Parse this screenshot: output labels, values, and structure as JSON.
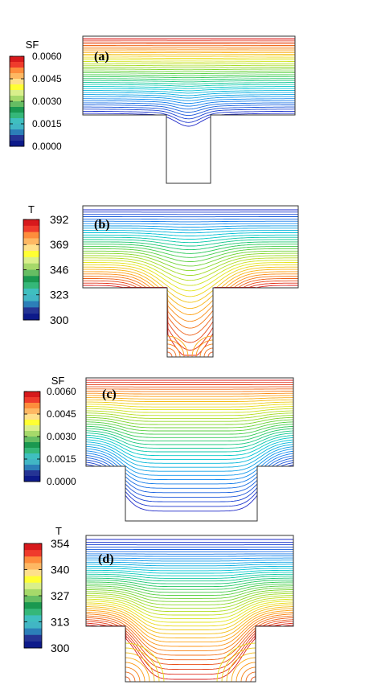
{
  "panels": [
    {
      "id": "a",
      "label": "(a)",
      "colorbar": {
        "title": "SF",
        "ticks": [
          "0.0060",
          "0.0045",
          "0.0030",
          "0.0015",
          "0.0000"
        ],
        "colors": [
          "#d7191c",
          "#ef3b2c",
          "#fd8d3c",
          "#fdb863",
          "#fee08b",
          "#ffff33",
          "#d9ef8b",
          "#a6d96a",
          "#66bd63",
          "#1a9850",
          "#35b779",
          "#3fbfbf",
          "#41b6c4",
          "#2c7fb8",
          "#253494",
          "#0d1a8a"
        ]
      }
    },
    {
      "id": "b",
      "label": "(b)",
      "colorbar": {
        "title": "T",
        "ticks": [
          "392",
          "369",
          "346",
          "323",
          "300"
        ],
        "colors": [
          "#d7191c",
          "#ef3b2c",
          "#fd8d3c",
          "#fdb863",
          "#fee08b",
          "#ffff33",
          "#d9ef8b",
          "#a6d96a",
          "#66bd63",
          "#1a9850",
          "#35b779",
          "#3fbfbf",
          "#41b6c4",
          "#2c7fb8",
          "#253494",
          "#0d1a8a"
        ]
      }
    },
    {
      "id": "c",
      "label": "(c)",
      "colorbar": {
        "title": "SF",
        "ticks": [
          "0.0060",
          "0.0045",
          "0.0030",
          "0.0015",
          "0.0000"
        ],
        "colors": [
          "#d7191c",
          "#ef3b2c",
          "#fd8d3c",
          "#fdb863",
          "#fee08b",
          "#ffff33",
          "#d9ef8b",
          "#a6d96a",
          "#66bd63",
          "#1a9850",
          "#35b779",
          "#3fbfbf",
          "#41b6c4",
          "#2c7fb8",
          "#253494",
          "#0d1a8a"
        ]
      }
    },
    {
      "id": "d",
      "label": "(d)",
      "colorbar": {
        "title": "T",
        "ticks": [
          "354",
          "340",
          "327",
          "313",
          "300"
        ],
        "colors": [
          "#d7191c",
          "#ef3b2c",
          "#fd8d3c",
          "#fdb863",
          "#fee08b",
          "#ffff33",
          "#d9ef8b",
          "#a6d96a",
          "#66bd63",
          "#1a9850",
          "#35b779",
          "#3fbfbf",
          "#41b6c4",
          "#2c7fb8",
          "#253494",
          "#0d1a8a"
        ]
      }
    }
  ]
}
